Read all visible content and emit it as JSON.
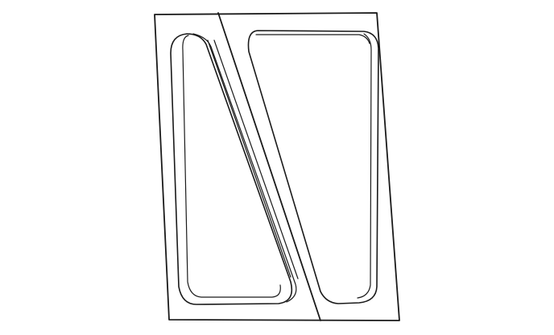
{
  "drawing": {
    "background_color": "#ffffff",
    "line_color": "#1a1a1a",
    "plate": {
      "pockets": [
        "left-triangular-pocket",
        "right-trapezoidal-pocket"
      ]
    }
  }
}
